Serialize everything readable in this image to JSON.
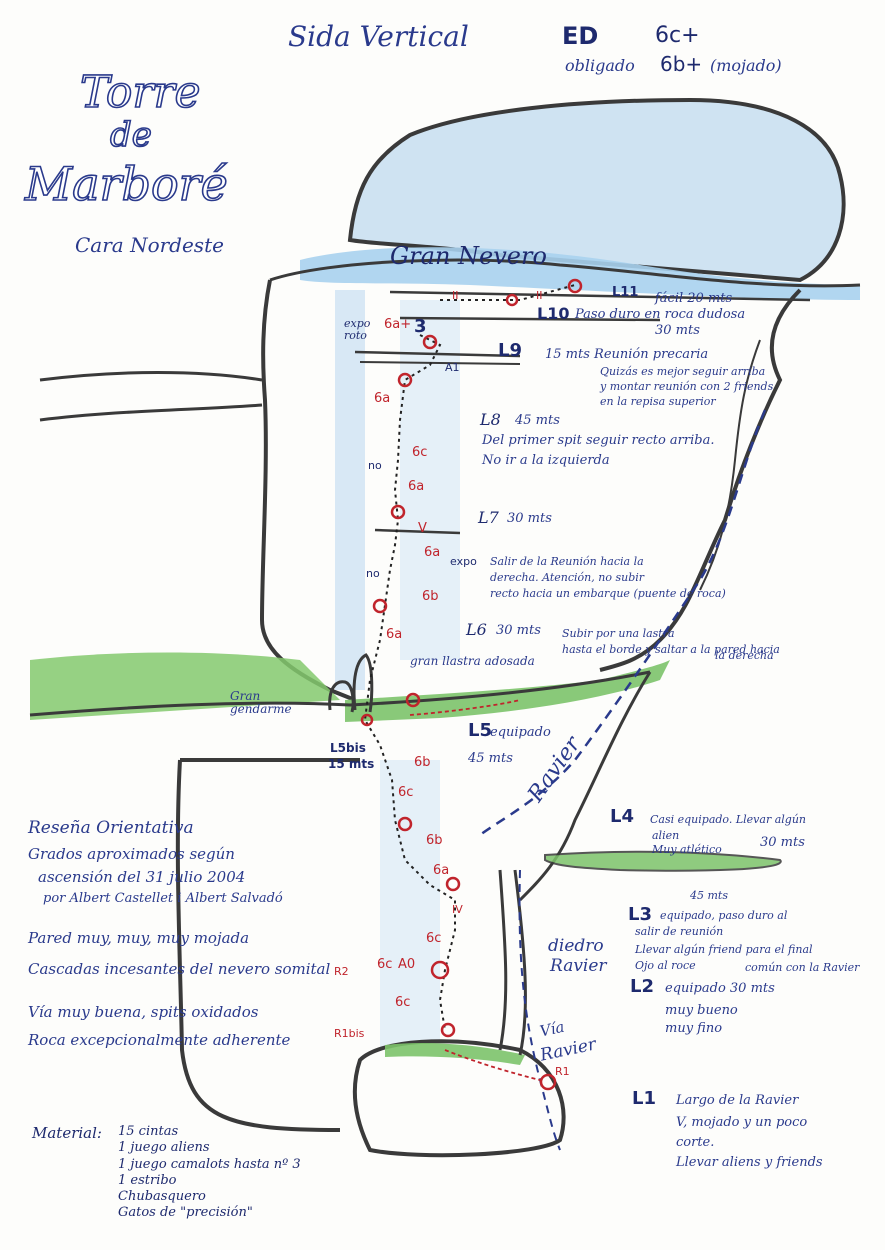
{
  "header": {
    "route_name": "Sida Vertical",
    "grade_overall": "ED",
    "grade_max": "6c+",
    "grade_obligatory_label": "obligado",
    "grade_obligatory": "6b+",
    "wet_note": "(mojado)"
  },
  "title": {
    "line1": "Torre",
    "line2": "de",
    "line3": "Marboré",
    "face": "Cara Nordeste"
  },
  "features": {
    "snowfield": "Gran Nevero",
    "gendarme": "Gran gendarme",
    "slab": "gran llastra adosada",
    "ravier_ramp": "Ravier",
    "dihedral_line1": "diedro",
    "dihedral_line2": "Ravier",
    "via_line1": "Vía",
    "via_line2": "Ravier"
  },
  "pitches": {
    "L11": {
      "label": "L11",
      "desc": "fácil  20 mts"
    },
    "L10": {
      "label": "L10",
      "line1": "Paso duro en roca dudosa",
      "line2": "30 mts"
    },
    "L9": {
      "label": "L9",
      "desc": "15 mts  Reunión precaria",
      "line2": "Quizás es mejor seguir arriba",
      "line3": "y montar reunión con 2 friends",
      "line4": "en la repisa superior"
    },
    "L8": {
      "label": "L8",
      "len": "45 mts",
      "line1": "Del primer spit seguir recto arriba.",
      "line2": "No ir a la izquierda"
    },
    "L7": {
      "label": "L7",
      "len": "30 mts"
    },
    "L6_note": {
      "line1": "Salir de la Reunión hacia la",
      "line2": "derecha. Atención, no subir",
      "line3": "recto hacia un embarque (puente de roca)"
    },
    "L6": {
      "label": "L6",
      "len": "30 mts",
      "line1": "Subir por una lastra",
      "line2": "hasta el borde y saltar a la pared hacia",
      "line3": "la derecha"
    },
    "L5": {
      "label": "L5",
      "desc": "equipado",
      "len": "45 mts"
    },
    "L5bis": {
      "label": "L5bis",
      "len": "15 mts"
    },
    "L4": {
      "label": "L4",
      "line1": "Casi equipado. Llevar algún",
      "line2": "alien",
      "len": "30 mts",
      "line3": "Muy atlético",
      "len2": "45 mts"
    },
    "L3": {
      "label": "L3",
      "line1": "equipado, paso duro al",
      "line2": "salir de reunión",
      "line3": "Llevar algún friend para el final",
      "line4": "Ojo al roce",
      "line5": "común con la Ravier"
    },
    "L2": {
      "label": "L2",
      "line1": "equipado  30 mts",
      "line2": "muy bueno",
      "line3": "muy fino"
    },
    "L1": {
      "label": "L1",
      "line1": "Largo de la Ravier",
      "line2": "V, mojado y un poco",
      "line3": "corte.",
      "line4": "Llevar aliens y friends"
    }
  },
  "route_labels": {
    "expo_roto": "expo roto",
    "six_a_plus": "6a+",
    "A1": "A1",
    "six_a_1": "6a",
    "six_c_1": "6c",
    "no_1": "no",
    "six_a_2": "6a",
    "V_1": "V",
    "six_a_3": "6a",
    "expo": "expo",
    "no_2": "no",
    "six_b_1": "6b",
    "six_a_4": "6a",
    "six_b_2": "6b",
    "six_c_2": "6c",
    "six_b_3": "6b",
    "six_a_5": "6a",
    "IV": "IV",
    "six_c_3": "6c",
    "six_c_4": "6c",
    "six_c_5": "6c",
    "A0": "A0",
    "R2": "R2",
    "R1bis": "R1bis",
    "R1": "R1",
    "II_1": "II",
    "II_2": "II",
    "num_3": "3"
  },
  "notes": {
    "heading": "Reseña Orientativa",
    "line1": "Grados aproximados según",
    "line2": "ascensión del  31 julio 2004",
    "line3": "por Albert Castellet i Albert Salvadó",
    "line4": "Pared muy, muy, muy mojada",
    "line5": "Cascadas incesantes del nevero somital",
    "line6": "Vía muy buena, spits oxidados",
    "line7": "Roca excepcionalmente adherente"
  },
  "material": {
    "label": "Material:",
    "items": [
      "15 cintas",
      "1 juego aliens",
      "1 juego camalots hasta nº 3",
      "1 estribo",
      "Chubasquero",
      "Gatos de \"precisión\""
    ]
  },
  "colors": {
    "ink": "#2a3a8c",
    "outline": "#3a3a3a",
    "snow": "#9cc8e8",
    "grass": "#7cc36a",
    "belay": "#c0242c",
    "route": "#c0242c"
  }
}
